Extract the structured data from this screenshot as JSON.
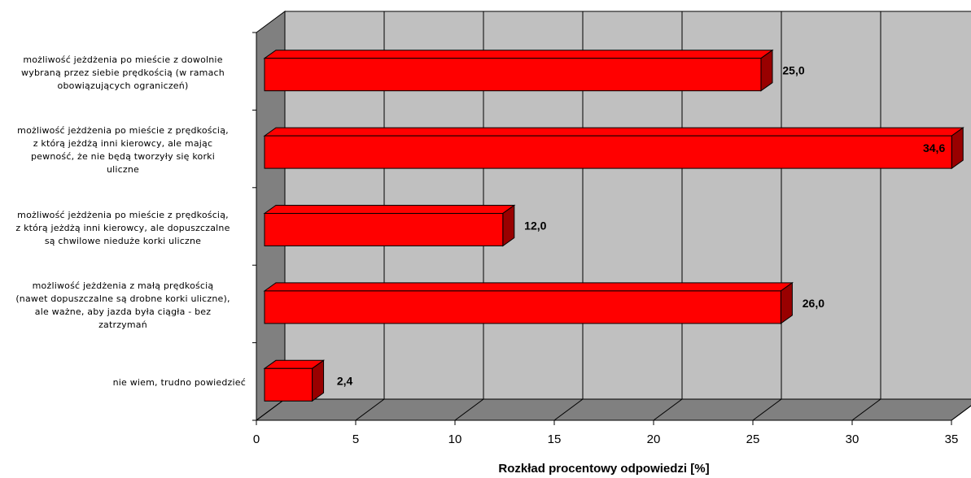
{
  "chart_data": {
    "type": "bar",
    "orientation": "horizontal",
    "categories": [
      "możliwość jeżdżenia po mieście z dowolnie wybraną przez siebie prędkością (w ramach obowiązujących ograniczeń)",
      "możliwość jeżdżenia po mieście z prędkością, z którą jeżdżą inni kierowcy, ale mając pewność, że nie będą tworzyły się korki uliczne",
      "możliwość jeżdżenia po mieście z prędkością, z którą jeżdżą inni kierowcy, ale dopuszczalne są chwilowe nieduże korki uliczne",
      "możliwość jeżdżenia z małą prędkością (nawet dopuszczalne są drobne korki uliczne), ale ważne, aby jazda była ciągła - bez zatrzymań",
      "nie wiem, trudno powiedzieć"
    ],
    "category_lines": [
      [
        "możliwość jeżdżenia po mieście z dowolnie",
        "wybraną przez siebie prędkością (w ramach",
        "obowiązujących ograniczeń)"
      ],
      [
        "możliwość jeżdżenia po mieście z prędkością,",
        "z którą jeżdżą inni kierowcy, ale mając",
        "pewność, że nie będą tworzyły się korki",
        "uliczne"
      ],
      [
        "możliwość jeżdżenia po mieście z prędkością,",
        "z którą jeżdżą inni kierowcy, ale dopuszczalne",
        "są chwilowe nieduże korki uliczne"
      ],
      [
        "możliwość jeżdżenia z małą prędkością",
        "(nawet dopuszczalne są drobne korki uliczne),",
        "ale ważne, aby jazda była ciągła - bez",
        "zatrzymań"
      ],
      [
        "nie wiem, trudno powiedzieć"
      ]
    ],
    "values": [
      25.0,
      34.6,
      12.0,
      26.0,
      2.4
    ],
    "value_labels": [
      "25,0",
      "34,6",
      "12,0",
      "26,0",
      "2,4"
    ],
    "xlabel": "Rozkład procentowy odpowiedzi [%]",
    "ylabel": "",
    "title": "",
    "xlim": [
      0,
      35
    ],
    "xticks": [
      0,
      5,
      10,
      15,
      20,
      25,
      30,
      35
    ],
    "grid": true,
    "style": "3d",
    "colors": {
      "bar_front": "#ff0000",
      "bar_top": "#ff0000",
      "bar_side": "#990000",
      "wall": "#c0c0c0",
      "floor": "#808080",
      "side_wall": "#808080",
      "grid": "#000000"
    }
  }
}
